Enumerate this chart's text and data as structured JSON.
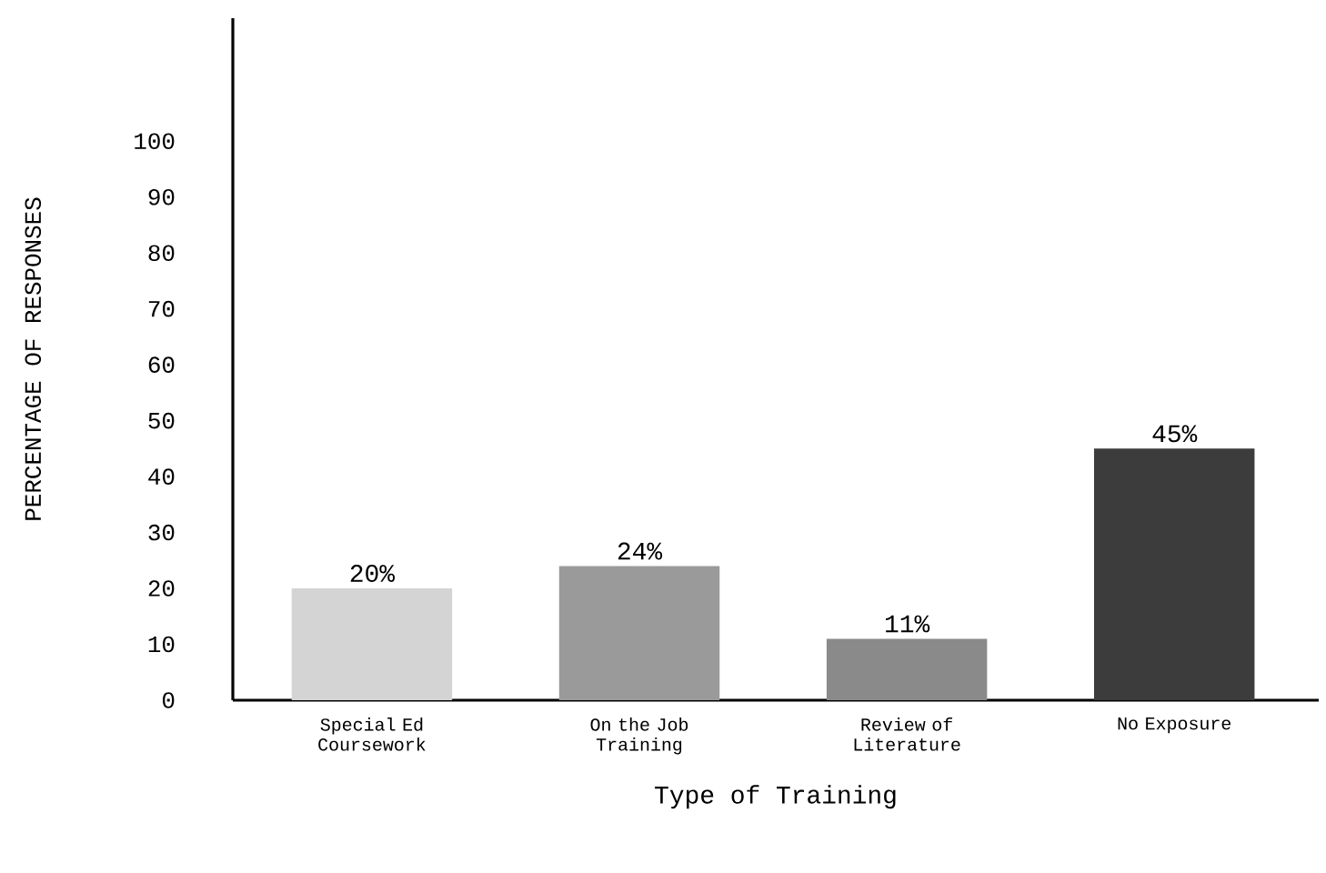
{
  "chart_data": {
    "type": "bar",
    "xlabel": "Type of Training",
    "ylabel": "PERCENTAGE OF RESPONSES",
    "categories": [
      "Special Ed Coursework",
      "On the Job Training",
      "Review of Literature",
      "No Exposure"
    ],
    "values": [
      20,
      24,
      11,
      45
    ],
    "colors": [
      "#d4d4d4",
      "#9a9a9a",
      "#8a8a8a",
      "#3c3c3c"
    ],
    "value_labels": [
      "20%",
      "24%",
      "11%",
      "45%"
    ],
    "ylim": [
      0,
      122
    ],
    "yticks": [
      0,
      10,
      20,
      30,
      40,
      50,
      60,
      70,
      80,
      90,
      100
    ],
    "grid": false
  }
}
